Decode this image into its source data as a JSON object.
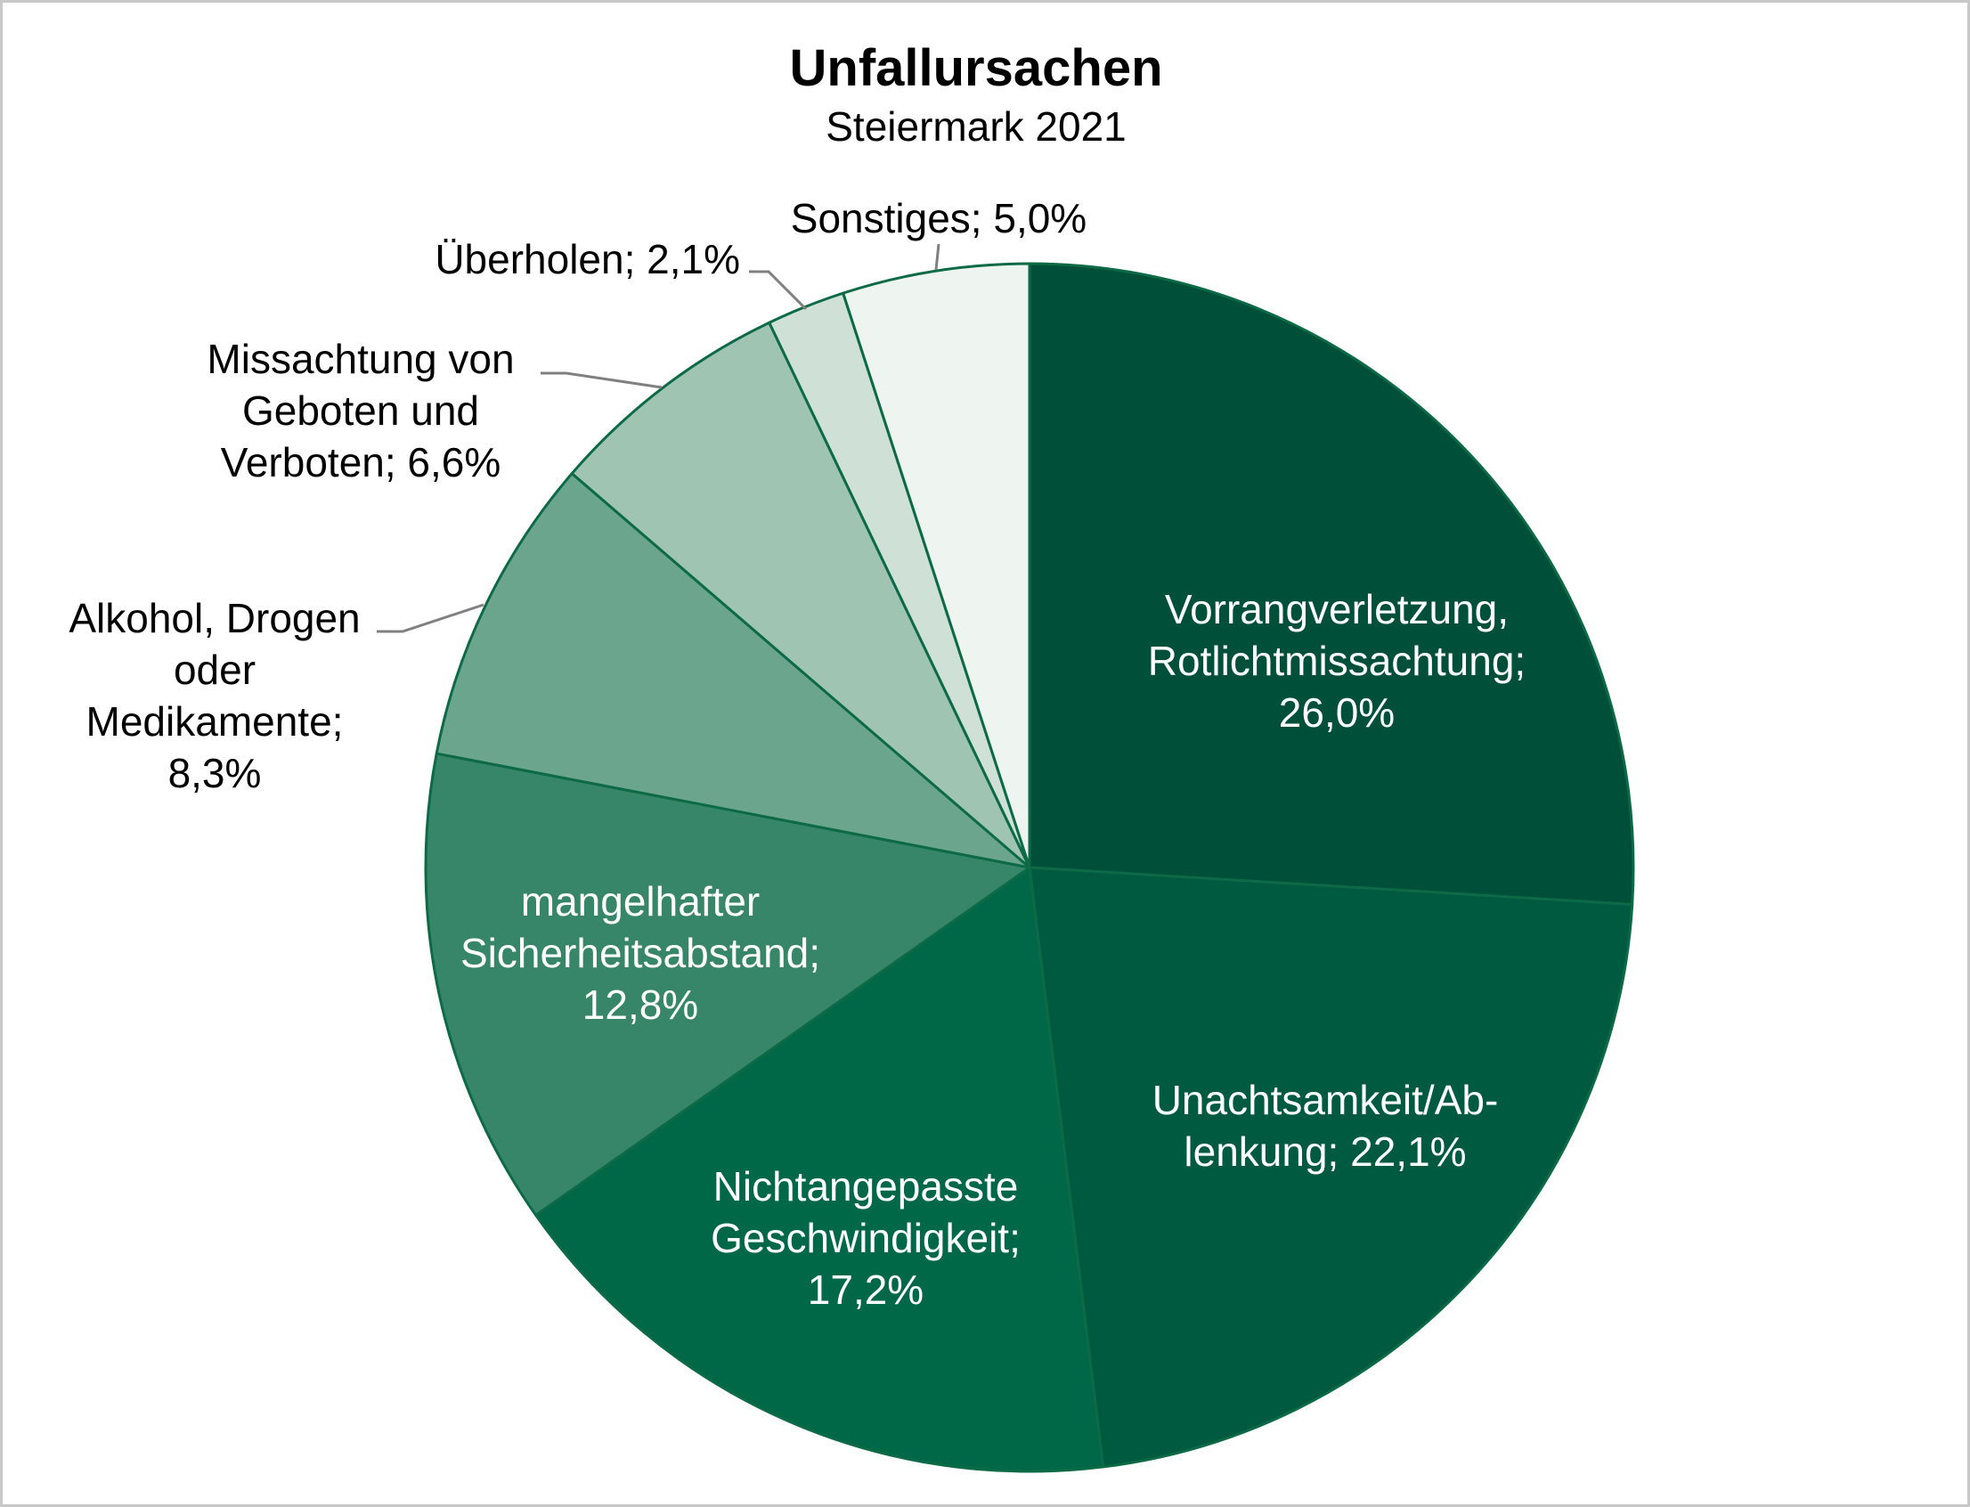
{
  "chart_data": {
    "type": "pie",
    "title": "Unfallursachen",
    "subtitle": "Steiermark 2021",
    "unit": "%",
    "slices": [
      {
        "label": "Vorrangverletzung, Rotlichtmissachtung",
        "label_lines": [
          "Vorrangverletzung,",
          "Rotlichtmissachtung;",
          "26,0%"
        ],
        "value": 26.0,
        "color": "#004f38"
      },
      {
        "label": "Unachtsamkeit/Ablenkung",
        "label_lines": [
          "Unachtsamkeit/Ab-",
          "lenkung; 22,1%"
        ],
        "value": 22.1,
        "color": "#005a3f"
      },
      {
        "label": "Nichtangepasste Geschwindigkeit",
        "label_lines": [
          "Nichtangepasste",
          "Geschwindigkeit;",
          "17,2%"
        ],
        "value": 17.2,
        "color": "#006846"
      },
      {
        "label": "mangelhafter Sicherheitsabstand",
        "label_lines": [
          "mangelhafter",
          "Sicherheitsabstand;",
          "12,8%"
        ],
        "value": 12.8,
        "color": "#38866a"
      },
      {
        "label": "Alkohol, Drogen oder Medikamente",
        "label_lines": [
          "Alkohol, Drogen",
          "oder",
          "Medikamente;",
          "8,3%"
        ],
        "value": 8.3,
        "color": "#6ca58d"
      },
      {
        "label": "Missachtung von Geboten und Verboten",
        "label_lines": [
          "Missachtung von",
          "Geboten und",
          "Verboten; 6,6%"
        ],
        "value": 6.6,
        "color": "#9fc4b1"
      },
      {
        "label": "Überholen",
        "label_lines": [
          "Überholen; 2,1%"
        ],
        "value": 2.1,
        "color": "#cfe1d6"
      },
      {
        "label": "Sonstiges",
        "label_lines": [
          "Sonstiges; 5,0%"
        ],
        "value": 5.0,
        "color": "#eef4ef"
      }
    ],
    "start_angle": "12 o'clock",
    "direction": "clockwise",
    "legend": "none",
    "slice_border_color": "#0c6a46",
    "leader_line_color": "#808080"
  }
}
